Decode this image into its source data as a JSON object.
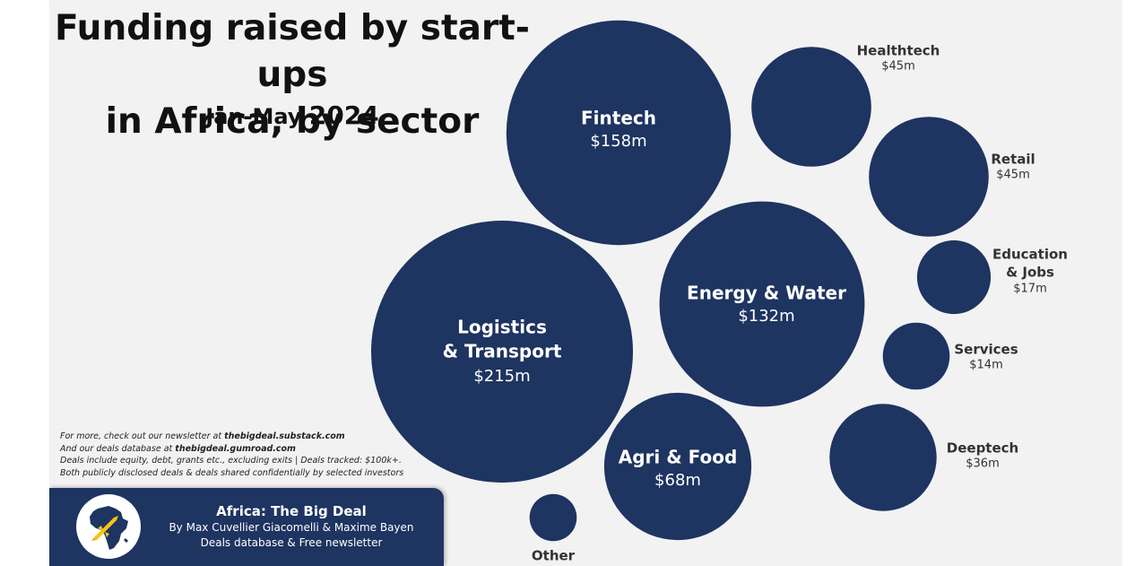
{
  "header": {
    "title_line1": "Funding raised by start-ups",
    "title_line2": "in Africa, by sector",
    "subtitle_period": "Jan-May",
    "subtitle_year": "2024"
  },
  "notes": {
    "line1_prefix": "For more, check out our newsletter at",
    "line1_link": "thebigdeal.substack.com",
    "line2_prefix": "And our deals database at",
    "line2_link": "thebigdeal.gumroad.com",
    "line3": "Deals include equity, debt, grants etc., excluding exits | Deals tracked:  $100k+.",
    "line4": "Both publicly disclosed deals & deals shared confidentially by selected investors"
  },
  "brand": {
    "name": "Africa: The Big Deal",
    "authors": "By Max Cuvellier Giacomelli & Maxime Bayen",
    "tagline": "Deals database & Free newsletter",
    "logo_icon": "africa-map-rocket-icon"
  },
  "colors": {
    "bubble": "#1e3461",
    "background": "#f2f2f2",
    "label_outside": "#333333",
    "label_inside": "#ffffff"
  },
  "chart_data": {
    "type": "bubble",
    "title": "Funding raised by start-ups in Africa, by sector",
    "subtitle": "Jan-May 2024",
    "unit": "$m",
    "categories": [
      "Logistics & Transport",
      "Fintech",
      "Energy & Water",
      "Agri & Food",
      "Healthtech",
      "Retail",
      "Deeptech",
      "Education & Jobs",
      "Services",
      "Other"
    ],
    "values": [
      215,
      158,
      132,
      68,
      45,
      45,
      36,
      17,
      14,
      7
    ],
    "bubbles": [
      {
        "label_lines": [
          "Logistics",
          "& Transport"
        ],
        "value_label": "$215m",
        "value": 215,
        "label_position": "inside"
      },
      {
        "label_lines": [
          "Fintech"
        ],
        "value_label": "$158m",
        "value": 158,
        "label_position": "inside"
      },
      {
        "label_lines": [
          "Energy & Water"
        ],
        "value_label": "$132m",
        "value": 132,
        "label_position": "inside"
      },
      {
        "label_lines": [
          "Agri & Food"
        ],
        "value_label": "$68m",
        "value": 68,
        "label_position": "inside"
      },
      {
        "label_lines": [
          "Healthtech"
        ],
        "value_label": "$45m",
        "value": 45,
        "label_position": "outside"
      },
      {
        "label_lines": [
          "Retail"
        ],
        "value_label": "$45m",
        "value": 45,
        "label_position": "outside"
      },
      {
        "label_lines": [
          "Deeptech"
        ],
        "value_label": "$36m",
        "value": 36,
        "label_position": "outside"
      },
      {
        "label_lines": [
          "Education",
          "& Jobs"
        ],
        "value_label": "$17m",
        "value": 17,
        "label_position": "outside"
      },
      {
        "label_lines": [
          "Services"
        ],
        "value_label": "$14m",
        "value": 14,
        "label_position": "outside"
      },
      {
        "label_lines": [
          "Other"
        ],
        "value_label": "",
        "value": 7,
        "label_position": "outside"
      }
    ]
  }
}
